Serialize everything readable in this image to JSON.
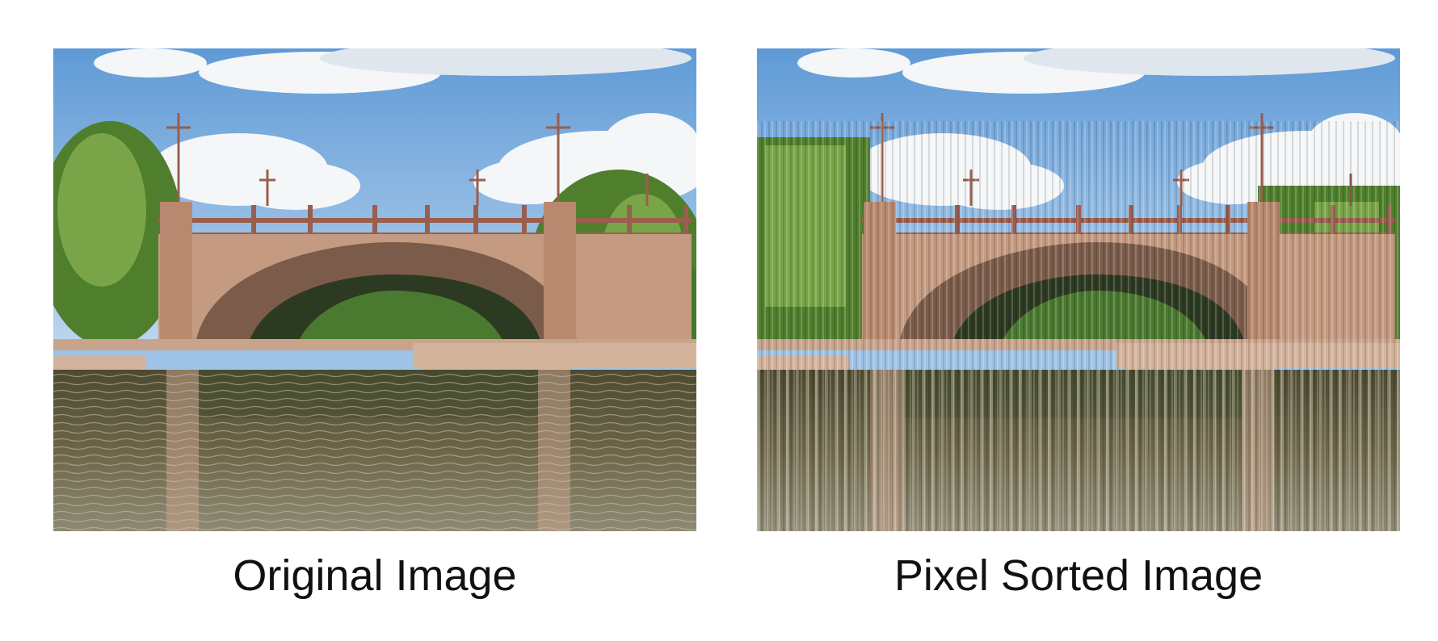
{
  "figure": {
    "panels": [
      {
        "id": "original",
        "caption": "Original Image",
        "effect": "none"
      },
      {
        "id": "pixel-sorted",
        "caption": "Pixel Sorted Image",
        "effect": "vertical-pixel-sort-streaks"
      }
    ]
  },
  "colors": {
    "sky_top": "#5f9ad6",
    "sky_bottom": "#b9d4ee",
    "cloud": "#f4f6f8",
    "stone": "#c49a80",
    "stone_dark": "#8f6a55",
    "railing": "#9a5e4e",
    "foliage": "#4f7f2c",
    "foliage_light": "#8bb554",
    "water": "#5e5a40",
    "water_light": "#bfb9a6"
  }
}
